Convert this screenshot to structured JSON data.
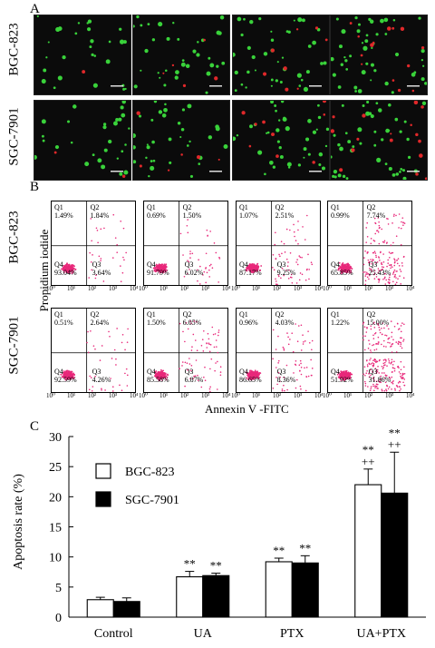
{
  "panel_a": {
    "letter": "A",
    "rows": [
      "BGC-823",
      "SGC-7901"
    ]
  },
  "panel_b": {
    "letter": "B",
    "row_labels": [
      "BGC-823",
      "SGC-7901"
    ],
    "y_axis_label": "Propidium iodide",
    "x_axis_label": "Annexin V -FITC",
    "x_ticks": [
      "10⁰",
      "10¹",
      "10²",
      "10³",
      "10⁴"
    ],
    "quadrant_names": [
      "Q1",
      "Q2",
      "Q3",
      "Q4"
    ],
    "plots": [
      {
        "q1": "1.49%",
        "q2": "1.84%",
        "q3": "3.64%",
        "q4": "93.04%"
      },
      {
        "q1": "0.69%",
        "q2": "1.50%",
        "q3": "6.02%",
        "q4": "91.79%"
      },
      {
        "q1": "1.07%",
        "q2": "2.51%",
        "q3": "9.25%",
        "q4": "87.17%"
      },
      {
        "q1": "0.99%",
        "q2": "7.74%",
        "q3": "25.43%",
        "q4": "65.85%"
      },
      {
        "q1": "0.51%",
        "q2": "2.64%",
        "q3": "4.26%",
        "q4": "92.59%"
      },
      {
        "q1": "1.50%",
        "q2": "6.05%",
        "q3": "6.87%",
        "q4": "85.58%"
      },
      {
        "q1": "0.96%",
        "q2": "4.03%",
        "q3": "8.36%",
        "q4": "86.65%"
      },
      {
        "q1": "1.22%",
        "q2": "15.00%",
        "q3": "31.86%",
        "q4": "51.92%"
      }
    ]
  },
  "panel_c": {
    "letter": "C"
  },
  "chart_data": {
    "type": "bar",
    "categories": [
      "Control",
      "UA",
      "PTX",
      "UA+PTX"
    ],
    "series": [
      {
        "name": "BGC-823",
        "values": [
          2.9,
          6.7,
          9.2,
          22.0
        ],
        "errors": [
          0.4,
          0.9,
          0.6,
          2.6
        ],
        "color": "#ffffff"
      },
      {
        "name": "SGC-7901",
        "values": [
          2.6,
          6.9,
          9.0,
          20.6
        ],
        "errors": [
          0.6,
          0.4,
          1.2,
          6.8
        ],
        "color": "#000000"
      }
    ],
    "ylabel": "Apoptosis rate (%)",
    "ylim": [
      0,
      30
    ],
    "yticks": [
      "0",
      "5",
      "10",
      "15",
      "20",
      "25",
      "30"
    ],
    "annotations": [
      {
        "category": "UA",
        "series": 0,
        "text": "**"
      },
      {
        "category": "UA",
        "series": 1,
        "text": "**"
      },
      {
        "category": "PTX",
        "series": 0,
        "text": "**"
      },
      {
        "category": "PTX",
        "series": 1,
        "text": "**"
      },
      {
        "category": "UA+PTX",
        "series": 0,
        "text": "**\n++"
      },
      {
        "category": "UA+PTX",
        "series": 1,
        "text": "**\n++"
      }
    ],
    "legend_position": "top-left"
  },
  "colors": {
    "green_cell": "#39d23a",
    "red_cell": "#e0282a",
    "flow_dot": "#e8287a"
  }
}
